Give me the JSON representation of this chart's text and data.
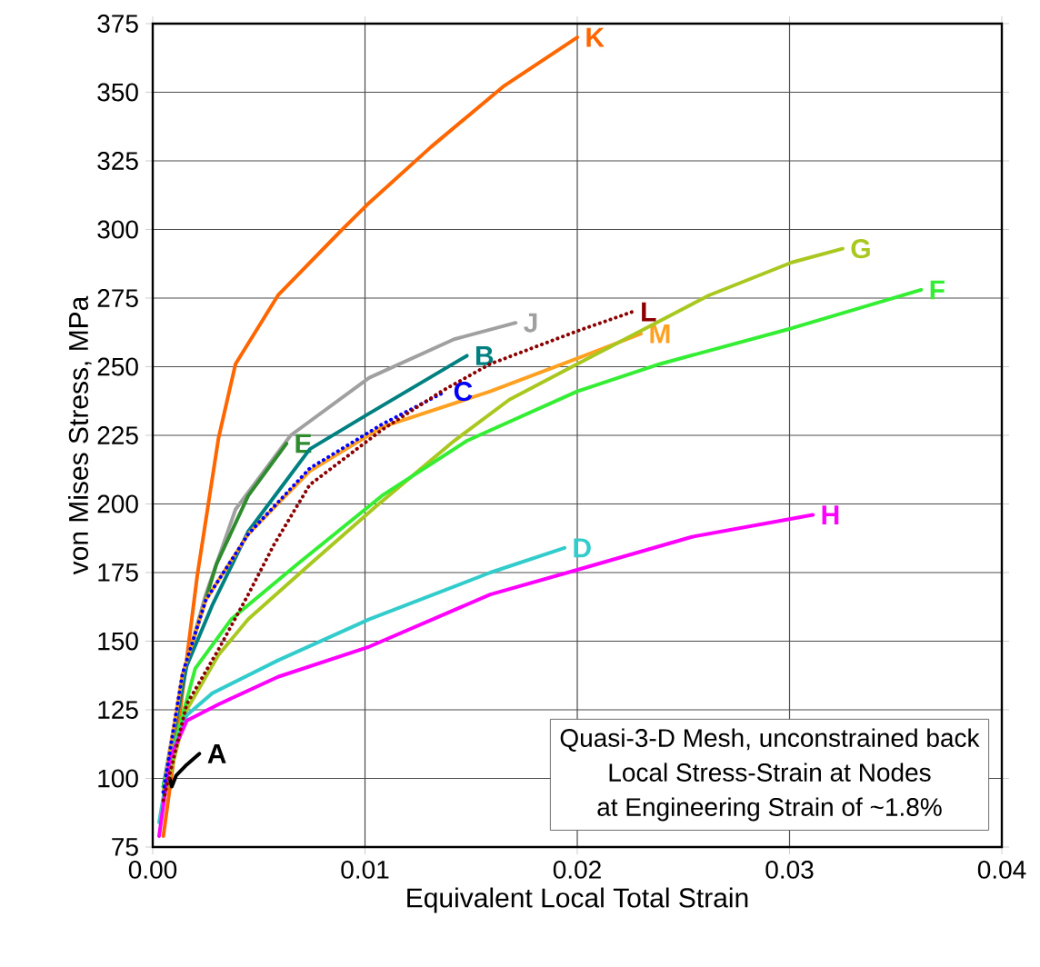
{
  "chart_data": {
    "type": "line",
    "xlabel": "Equivalent Local Total Strain",
    "ylabel": "von Mises Stress, MPa",
    "xlim": [
      0,
      0.04
    ],
    "ylim": [
      75,
      375
    ],
    "xticks": [
      {
        "value": 0,
        "label": "0.00"
      },
      {
        "value": 0.01,
        "label": "0.01"
      },
      {
        "value": 0.02,
        "label": "0.02"
      },
      {
        "value": 0.03,
        "label": "0.03"
      },
      {
        "value": 0.04,
        "label": "0.04"
      }
    ],
    "yticks": [
      75,
      100,
      125,
      150,
      175,
      200,
      225,
      250,
      275,
      300,
      325,
      350,
      375
    ],
    "grid": true,
    "legend": false,
    "marker": "none",
    "annotations": [
      "Quasi-3-D Mesh, unconstrained back",
      "Local Stress-Strain at Nodes",
      "at Engineering Strain of ~1.8%"
    ],
    "series": [
      {
        "name": "K",
        "color": "#ff6600",
        "line_style": "solid",
        "x": [
          0.0005,
          0.0012,
          0.0021,
          0.0031,
          0.0039,
          0.0059,
          0.0088,
          0.0101,
          0.0131,
          0.0165,
          0.02
        ],
        "values": [
          79,
          119,
          174,
          224,
          251,
          276,
          299,
          309,
          330,
          352,
          370
        ]
      },
      {
        "name": "J",
        "color": "#a0a0a0",
        "line_style": "solid",
        "x": [
          0.0005,
          0.0014,
          0.0025,
          0.0039,
          0.0065,
          0.0102,
          0.0142,
          0.0171
        ],
        "values": [
          97,
          137,
          167,
          198,
          225,
          246,
          260,
          266
        ]
      },
      {
        "name": "E",
        "color": "#2e8b2e",
        "line_style": "solid",
        "x": [
          0.0005,
          0.0015,
          0.003,
          0.0045,
          0.0063
        ],
        "values": [
          95,
          140,
          178,
          203,
          222
        ]
      },
      {
        "name": "B",
        "color": "#008080",
        "line_style": "solid",
        "x": [
          0.0005,
          0.0016,
          0.0028,
          0.0045,
          0.0074,
          0.0102,
          0.0148
        ],
        "values": [
          97,
          141,
          163,
          190,
          220,
          233,
          254
        ]
      },
      {
        "name": "M",
        "color": "#ffa020",
        "line_style": "solid",
        "x": [
          0.0005,
          0.0014,
          0.0025,
          0.0045,
          0.0074,
          0.0108,
          0.0159,
          0.02,
          0.023
        ],
        "values": [
          95,
          138,
          165,
          189,
          212,
          228,
          241,
          253,
          262
        ]
      },
      {
        "name": "C",
        "color": "#0000ff",
        "line_style": "dotted",
        "x": [
          0.0005,
          0.0014,
          0.0025,
          0.0045,
          0.0074,
          0.0108,
          0.0138
        ],
        "values": [
          95,
          138,
          165,
          189,
          213,
          229,
          241
        ]
      },
      {
        "name": "L",
        "color": "#8b0000",
        "line_style": "dotted",
        "x": [
          0.0005,
          0.0016,
          0.0031,
          0.0045,
          0.0057,
          0.0074,
          0.0108,
          0.0136,
          0.0159,
          0.02,
          0.0226
        ],
        "values": [
          92,
          127,
          147,
          167,
          185,
          207,
          227,
          241,
          251,
          263,
          270
        ]
      },
      {
        "name": "G",
        "color": "#a8c820",
        "line_style": "solid",
        "x": [
          0.0005,
          0.0016,
          0.0031,
          0.0045,
          0.0074,
          0.0105,
          0.0142,
          0.0168,
          0.02,
          0.0262,
          0.0301,
          0.0325
        ],
        "values": [
          92,
          125,
          145,
          158,
          178,
          199,
          223,
          238,
          251,
          276,
          288,
          293
        ]
      },
      {
        "name": "F",
        "color": "#33ee33",
        "line_style": "solid",
        "x": [
          0.0005,
          0.002,
          0.0037,
          0.0068,
          0.0108,
          0.0148,
          0.02,
          0.0239,
          0.0301,
          0.0362
        ],
        "values": [
          97,
          140,
          158,
          178,
          203,
          223,
          241,
          251,
          264,
          278
        ]
      },
      {
        "name": "D",
        "color": "#33cccc",
        "line_style": "solid",
        "x": [
          0.0003,
          0.0008,
          0.0016,
          0.0028,
          0.0059,
          0.0102,
          0.0159,
          0.0194
        ],
        "values": [
          84,
          107,
          123,
          131,
          143,
          158,
          175,
          184
        ]
      },
      {
        "name": "H",
        "color": "#ff00ff",
        "line_style": "solid",
        "x": [
          0.0003,
          0.0008,
          0.0016,
          0.0031,
          0.0059,
          0.0102,
          0.0159,
          0.02,
          0.0254,
          0.0311
        ],
        "values": [
          79,
          107,
          121,
          127,
          137,
          148,
          167,
          176,
          188,
          196
        ]
      },
      {
        "name": "A",
        "color": "#000000",
        "line_style": "solid",
        "x": [
          0.0008,
          0.0009,
          0.0011,
          0.0016,
          0.0022
        ],
        "values": [
          100,
          97,
          101,
          105,
          109
        ]
      }
    ]
  }
}
